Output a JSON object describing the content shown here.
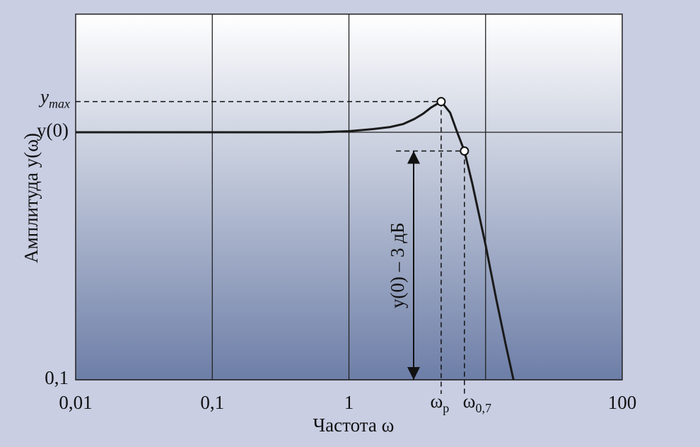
{
  "chart_data": {
    "type": "line",
    "x_label": "Частота ω",
    "y_label": "Амплитуда y(ω)",
    "log_x": true,
    "log_y": true,
    "color": "#1a1a1a",
    "xlim": [
      0.01,
      100
    ],
    "ylim": [
      0.1,
      3
    ],
    "xticks": [
      {
        "value": 0.01,
        "label": "0,01"
      },
      {
        "value": 0.1,
        "label": "0,1"
      },
      1,
      100
    ],
    "xgrid": [
      0.1,
      1,
      10
    ],
    "yticks": [
      {
        "value": 0.1,
        "label": "0,1"
      },
      {
        "value": 1,
        "label": "y(0)"
      }
    ],
    "x": [
      0.01,
      0.3,
      0.6,
      1,
      1.5,
      2,
      2.5,
      3,
      3.5,
      4,
      4.73,
      5.5,
      6.2,
      7.0,
      8,
      10,
      12,
      14,
      16
    ],
    "values": [
      1,
      1,
      1,
      1.01,
      1.03,
      1.05,
      1.08,
      1.13,
      1.19,
      1.26,
      1.33,
      1.2,
      1.0,
      0.84,
      0.62,
      0.35,
      0.21,
      0.14,
      0.1
    ],
    "peak": {
      "x": 4.73,
      "y": 1.33,
      "x_label": {
        "main": "ω",
        "sub": "p"
      },
      "y_label": {
        "main": "y",
        "sub": "max"
      }
    },
    "cutoff": {
      "x": 7.0,
      "y": 0.84,
      "x_label": {
        "main": "ω",
        "sub": "0,7"
      },
      "note": "y(0) – 3 дБ"
    }
  }
}
